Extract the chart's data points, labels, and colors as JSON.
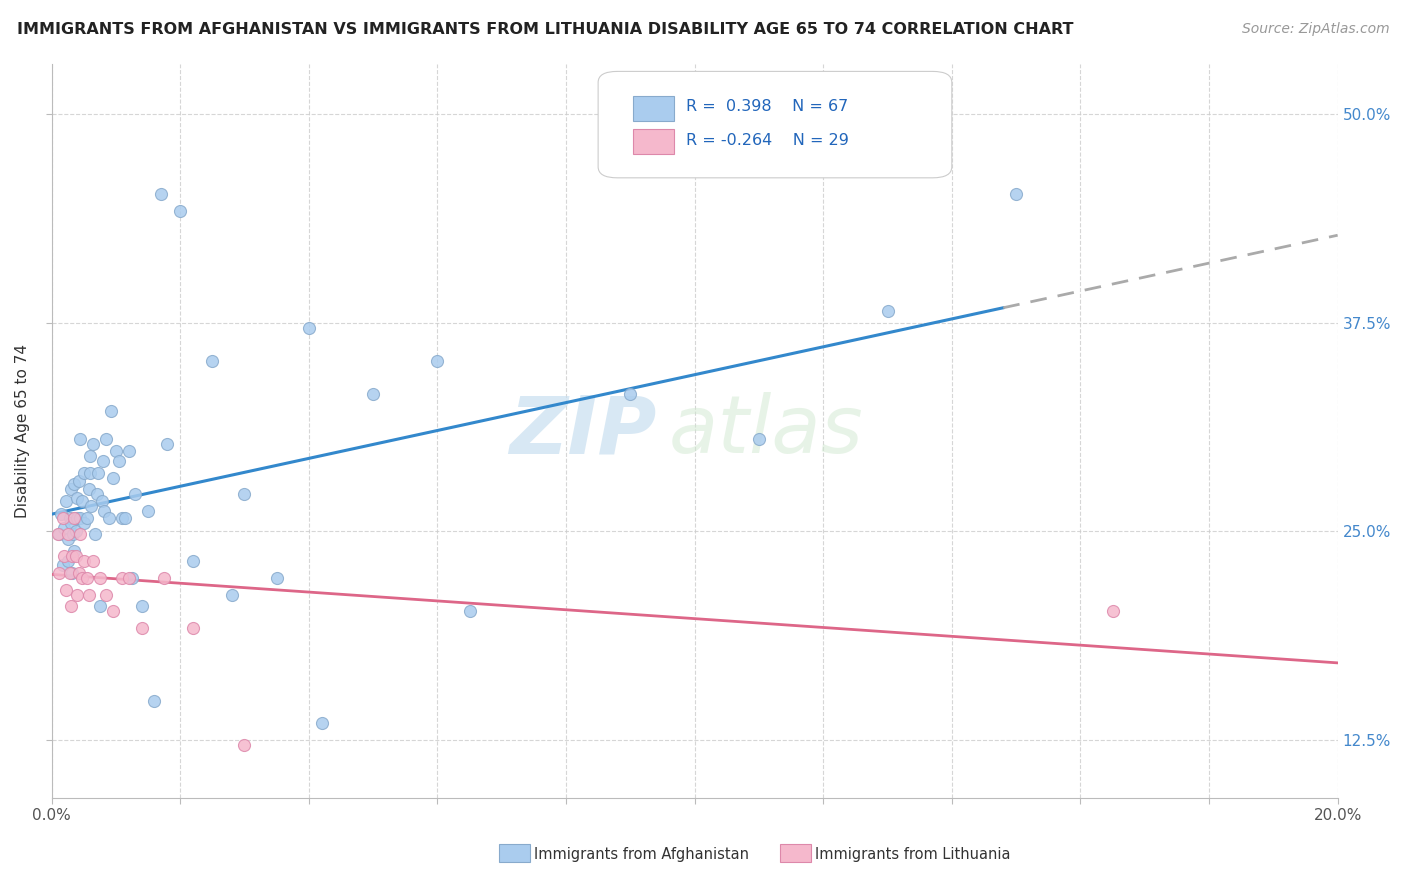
{
  "title": "IMMIGRANTS FROM AFGHANISTAN VS IMMIGRANTS FROM LITHUANIA DISABILITY AGE 65 TO 74 CORRELATION CHART",
  "source_text": "Source: ZipAtlas.com",
  "ylabel": "Disability Age 65 to 74",
  "xlim": [
    0.0,
    0.2
  ],
  "ylim": [
    0.09,
    0.53
  ],
  "yticks": [
    0.125,
    0.25,
    0.375,
    0.5
  ],
  "yticklabels": [
    "12.5%",
    "25.0%",
    "37.5%",
    "50.0%"
  ],
  "afghanistan_color": "#aaccee",
  "afghanistan_edge": "#88aacc",
  "lithuania_color": "#f5b8cc",
  "lithuania_edge": "#dd88aa",
  "trend_afghanistan_color": "#3388cc",
  "trend_lithuania_color": "#dd6688",
  "trend_dash_color": "#aaaaaa",
  "R_afghanistan": 0.398,
  "N_afghanistan": 67,
  "R_lithuania": -0.264,
  "N_lithuania": 29,
  "legend_label_afghanistan": "Immigrants from Afghanistan",
  "legend_label_lithuania": "Immigrants from Lithuania",
  "watermark_zip": "ZIP",
  "watermark_atlas": "atlas",
  "af_x": [
    0.0012,
    0.0015,
    0.0018,
    0.002,
    0.0022,
    0.0025,
    0.0025,
    0.0028,
    0.003,
    0.003,
    0.0032,
    0.0033,
    0.0035,
    0.0035,
    0.0038,
    0.004,
    0.004,
    0.0042,
    0.0045,
    0.0045,
    0.0048,
    0.005,
    0.005,
    0.0055,
    0.0058,
    0.006,
    0.006,
    0.0062,
    0.0065,
    0.0068,
    0.007,
    0.0072,
    0.0075,
    0.0078,
    0.008,
    0.0082,
    0.0085,
    0.009,
    0.0092,
    0.0095,
    0.01,
    0.0105,
    0.011,
    0.0115,
    0.012,
    0.0125,
    0.013,
    0.014,
    0.015,
    0.016,
    0.017,
    0.018,
    0.02,
    0.022,
    0.025,
    0.028,
    0.03,
    0.035,
    0.04,
    0.05,
    0.06,
    0.09,
    0.11,
    0.13,
    0.15,
    0.065,
    0.042
  ],
  "af_y": [
    0.248,
    0.26,
    0.23,
    0.252,
    0.268,
    0.245,
    0.232,
    0.258,
    0.255,
    0.275,
    0.225,
    0.248,
    0.278,
    0.238,
    0.25,
    0.27,
    0.258,
    0.28,
    0.258,
    0.305,
    0.268,
    0.255,
    0.285,
    0.258,
    0.275,
    0.295,
    0.285,
    0.265,
    0.302,
    0.248,
    0.272,
    0.285,
    0.205,
    0.268,
    0.292,
    0.262,
    0.305,
    0.258,
    0.322,
    0.282,
    0.298,
    0.292,
    0.258,
    0.258,
    0.298,
    0.222,
    0.272,
    0.205,
    0.262,
    0.148,
    0.452,
    0.302,
    0.442,
    0.232,
    0.352,
    0.212,
    0.272,
    0.222,
    0.372,
    0.332,
    0.352,
    0.332,
    0.305,
    0.382,
    0.452,
    0.202,
    0.135
  ],
  "lt_x": [
    0.001,
    0.0012,
    0.0018,
    0.002,
    0.0022,
    0.0025,
    0.0028,
    0.003,
    0.0032,
    0.0035,
    0.0038,
    0.004,
    0.0042,
    0.0045,
    0.0048,
    0.005,
    0.0055,
    0.0058,
    0.0065,
    0.0075,
    0.0085,
    0.0095,
    0.011,
    0.012,
    0.014,
    0.0175,
    0.022,
    0.03,
    0.165
  ],
  "lt_y": [
    0.248,
    0.225,
    0.258,
    0.235,
    0.215,
    0.248,
    0.225,
    0.205,
    0.235,
    0.258,
    0.235,
    0.212,
    0.225,
    0.248,
    0.222,
    0.232,
    0.222,
    0.212,
    0.232,
    0.222,
    0.212,
    0.202,
    0.222,
    0.222,
    0.192,
    0.222,
    0.192,
    0.122,
    0.202
  ],
  "trend_af_x0": 0.0,
  "trend_af_x1": 0.148,
  "trend_af_x2": 0.2,
  "trend_lt_x0": 0.0,
  "trend_lt_x1": 0.2
}
